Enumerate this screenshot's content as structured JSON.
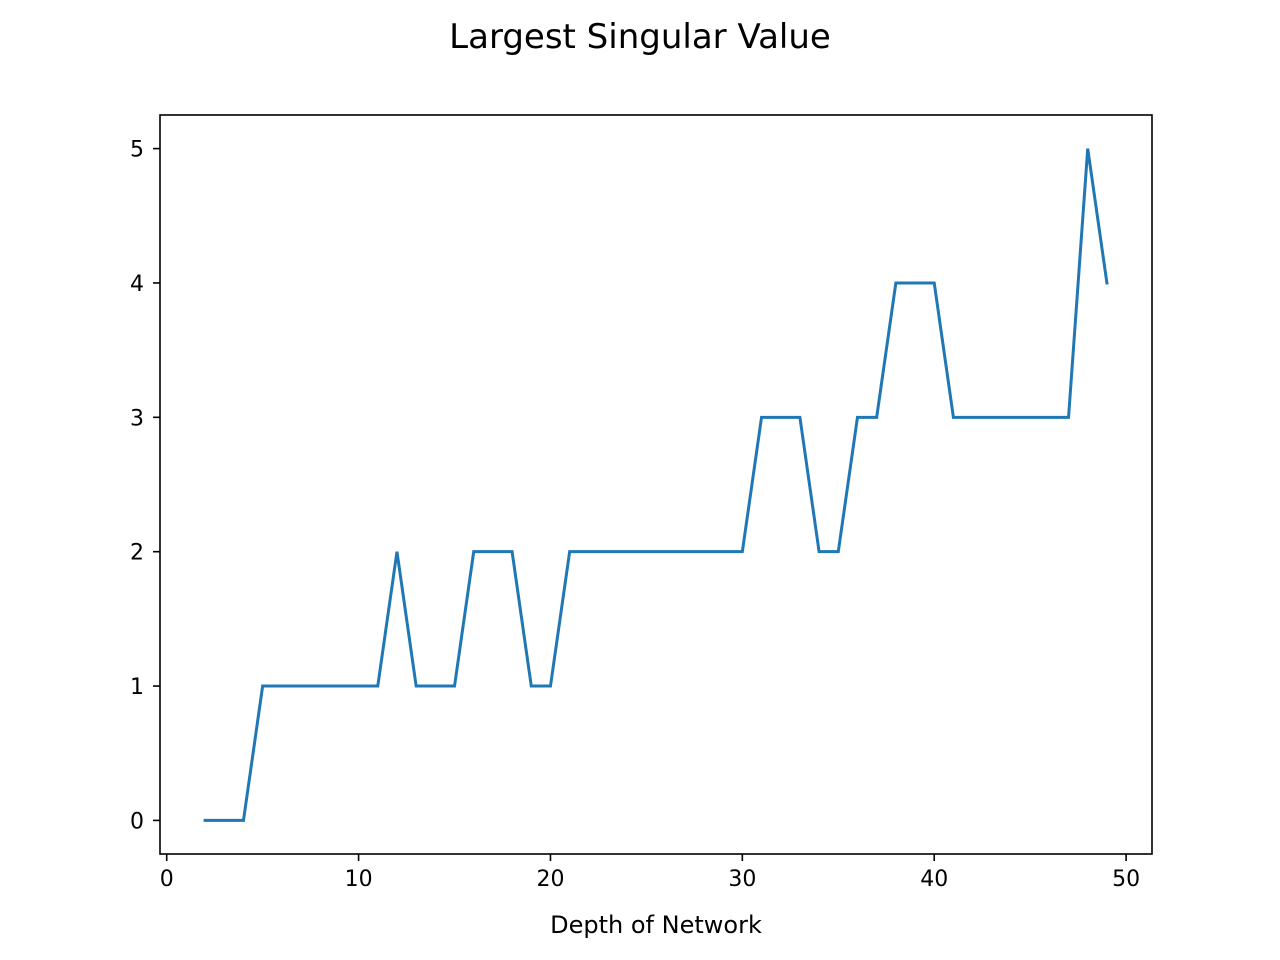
{
  "chart_data": {
    "type": "line",
    "title": "Largest Singular Value",
    "xlabel": "Depth of Network",
    "ylabel": "",
    "xlim": [
      -0.35,
      51.35
    ],
    "ylim": [
      -0.25,
      5.25
    ],
    "xticks": [
      0,
      10,
      20,
      30,
      40,
      50
    ],
    "yticks": [
      0,
      1,
      2,
      3,
      4,
      5
    ],
    "grid": false,
    "legend": "none",
    "series": [
      {
        "color": "#1f77b4",
        "x": [
          2,
          3,
          4,
          5,
          6,
          7,
          8,
          9,
          10,
          11,
          12,
          13,
          14,
          15,
          16,
          17,
          18,
          19,
          20,
          21,
          22,
          23,
          24,
          25,
          26,
          27,
          28,
          29,
          30,
          31,
          32,
          33,
          34,
          35,
          36,
          37,
          38,
          39,
          40,
          41,
          42,
          43,
          44,
          45,
          46,
          47,
          48,
          49
        ],
        "y": [
          0,
          0,
          0,
          1,
          1,
          1,
          1,
          1,
          1,
          1,
          2,
          1,
          1,
          1,
          2,
          2,
          2,
          1,
          1,
          2,
          2,
          2,
          2,
          2,
          2,
          2,
          2,
          2,
          2,
          3,
          3,
          3,
          2,
          2,
          3,
          3,
          4,
          4,
          4,
          3,
          3,
          3,
          3,
          3,
          3,
          3,
          5,
          4
        ]
      }
    ]
  }
}
